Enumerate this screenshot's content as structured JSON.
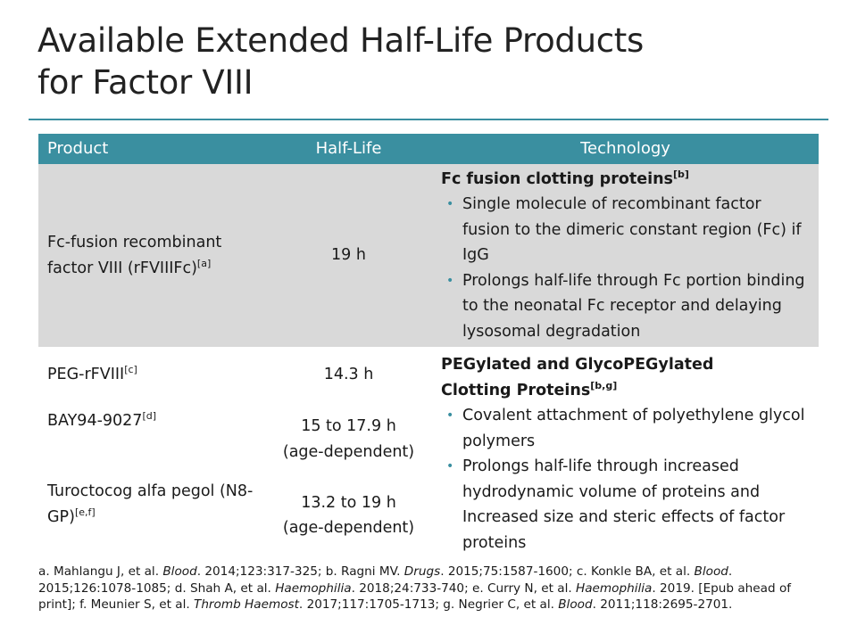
{
  "title": {
    "line1": "Available Extended Half-Life Products",
    "line2": "for Factor VIII"
  },
  "table": {
    "headers": [
      "Product",
      "Half-Life",
      "Technology"
    ],
    "fc": {
      "product_text": "Fc-fusion recombinant factor VIII (rFVIIIFc)",
      "product_sup": "[a]",
      "half_life": "19 h",
      "tech_heading": "Fc fusion clotting proteins",
      "tech_heading_sup": "[b]",
      "bullets": [
        "Single molecule of recombinant factor fusion to the dimeric constant region (Fc) if IgG",
        "Prolongs half-life through Fc portion binding to the neonatal Fc receptor and delaying lysosomal degradation"
      ]
    },
    "peg": {
      "tech_heading_line1": "PEGylated and GlycoPEGylated",
      "tech_heading_line2": "Clotting Proteins",
      "tech_heading_sup": "[b,g]",
      "bullets": [
        "Covalent attachment of polyethylene glycol polymers",
        "Prolongs half-life through increased hydrodynamic volume of proteins and Increased size and steric effects of factor proteins"
      ],
      "products": [
        {
          "name": "PEG-rFVIII",
          "sup": "[c]",
          "half_life_1": "14.3 h",
          "half_life_2": ""
        },
        {
          "name": "BAY94-9027",
          "sup": "[d]",
          "half_life_1": "15 to 17.9 h",
          "half_life_2": "(age-dependent)"
        },
        {
          "name": "Turoctocog alfa pegol (N8-GP)",
          "sup": "[e,f]",
          "half_life_1": "13.2 to 19 h",
          "half_life_2": "(age-dependent)"
        }
      ]
    }
  },
  "references": {
    "a_pre": "a. Mahlangu J, et al. ",
    "a_journal": "Blood",
    "a_post": ". 2014;123:317-325; ",
    "b_pre": "b. Ragni MV. ",
    "b_journal": "Drugs",
    "b_post": ". 2015;75:1587-1600; ",
    "c_pre": "c. Konkle BA, et al. ",
    "c_journal": "Blood",
    "c_post": ". 2015;126:1078-1085; ",
    "d_pre": "d. Shah A, et al. ",
    "d_journal": "Haemophilia",
    "d_post": ". 2018;24:733-740; ",
    "e_pre": "e. Curry N, et al. ",
    "e_journal": "Haemophilia",
    "e_post": ". 2019. [Epub ahead of print]; ",
    "f_pre": "f. Meunier S, et al. ",
    "f_journal": "Thromb Haemost",
    "f_post": ". 2017;117:1705-1713; ",
    "g_pre": "g. Negrier C, et al. ",
    "g_journal": "Blood",
    "g_post": ". 2011;118:2695-2701."
  }
}
